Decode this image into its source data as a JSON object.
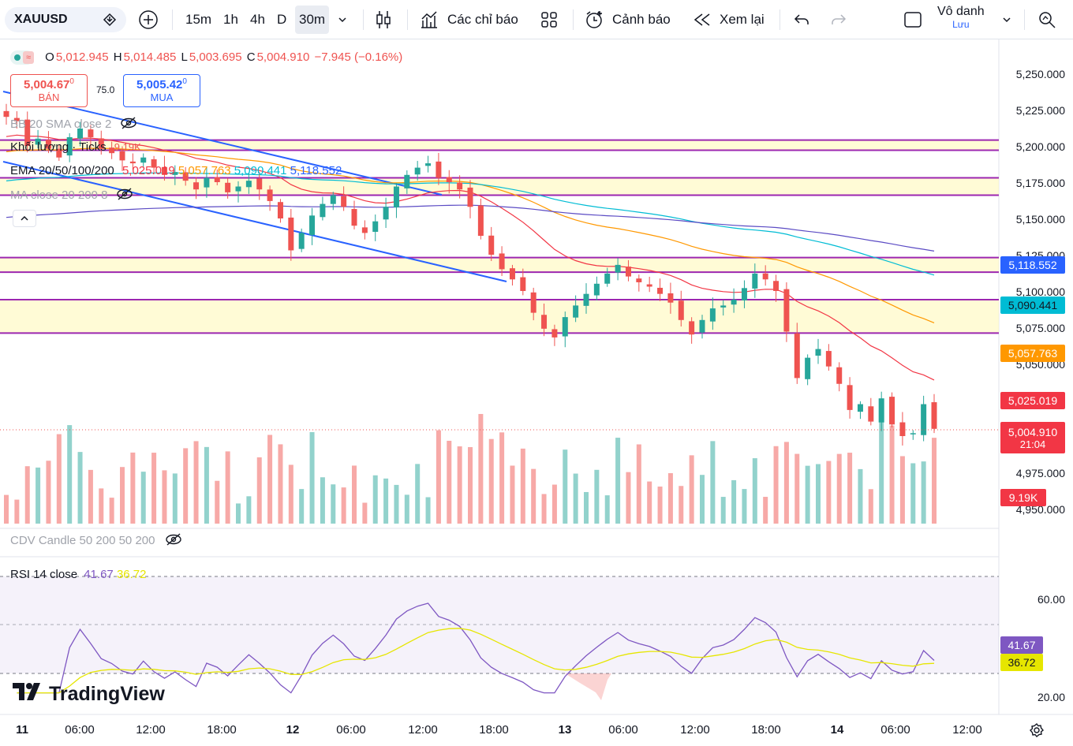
{
  "toolbar": {
    "symbol": "XAUUSD",
    "timeframes": [
      "15m",
      "1h",
      "4h",
      "D",
      "30m"
    ],
    "active_timeframe": "30m",
    "indicators_label": "Các chỉ báo",
    "alerts_label": "Cảnh báo",
    "replay_label": "Xem lại",
    "user_name": "Vô danh",
    "save_label": "Lưu"
  },
  "legend": {
    "ohlc": {
      "o_label": "O",
      "o": "5,012.945",
      "h_label": "H",
      "h": "5,014.485",
      "l_label": "L",
      "l": "5,003.695",
      "c_label": "C",
      "c": "5,004.910",
      "change": "−7.945 (−0.16%)"
    },
    "sell_price": "5,004.67",
    "sell_price_sup": "0",
    "sell_label": "BÁN",
    "spread": "75.0",
    "buy_price": "5,005.42",
    "buy_price_sup": "0",
    "buy_label": "MUA",
    "bb": "BB 20 SMA close 2",
    "volume": "Khối lượng · Ticks",
    "volume_value": "9.19K",
    "ema_label": "EMA 20/50/100/200",
    "ema_values": [
      "5,025.019",
      "5,057.763",
      "5,090.441",
      "5,118.552"
    ],
    "ma": "MA close 20 200 8",
    "cdv": "CDV Candle 50 200 50 200",
    "rsi_label": "RSI 14 close",
    "rsi_values": [
      "41.67",
      "36.72"
    ]
  },
  "price_axis": [
    "5,250.000",
    "5,225.000",
    "5,200.000",
    "5,175.000",
    "5,150.000",
    "5,125.000",
    "5,100.000",
    "5,075.000",
    "5,050.000",
    "4,975.000",
    "4,950.000"
  ],
  "price_tags": {
    "ema200": "5,118.552",
    "ema100": "5,090.441",
    "ema50": "5,057.763",
    "ema20": "5,025.019",
    "last": "5,004.910",
    "countdown": "21:04",
    "volume": "9.19K"
  },
  "rsi_axis": [
    "60.00",
    "20.00"
  ],
  "rsi_tags": [
    "41.67",
    "36.72"
  ],
  "time_axis": [
    "11",
    "06:00",
    "12:00",
    "18:00",
    "12",
    "06:00",
    "12:00",
    "18:00",
    "13",
    "06:00",
    "12:00",
    "18:00",
    "14",
    "06:00",
    "12:00"
  ],
  "brand": "TradingView",
  "colors": {
    "up": "#26a69a",
    "down": "#ef5350",
    "ema20": "#f23645",
    "ema50": "#ff9800",
    "ema100": "#00bcd4",
    "ema200": "#5b4bc4",
    "rsi": "#7e57c2",
    "rsi_ma": "#e6e600",
    "zone_line": "#9c27b0",
    "zone_fill": "#fff9c4",
    "trend": "#2962ff"
  },
  "chart_data": {
    "type": "candlestick",
    "symbol": "XAUUSD",
    "interval": "30m",
    "ylim": [
      4945,
      5260
    ],
    "closes": [
      5220,
      5217,
      5200,
      5205,
      5198,
      5192,
      5206,
      5212,
      5206,
      5198,
      5195,
      5190,
      5188,
      5192,
      5185,
      5180,
      5182,
      5176,
      5170,
      5178,
      5175,
      5168,
      5172,
      5176,
      5170,
      5162,
      5150,
      5128,
      5140,
      5152,
      5160,
      5166,
      5158,
      5145,
      5140,
      5148,
      5158,
      5172,
      5180,
      5185,
      5188,
      5178,
      5175,
      5170,
      5158,
      5138,
      5125,
      5115,
      5108,
      5100,
      5085,
      5074,
      5068,
      5082,
      5090,
      5098,
      5105,
      5112,
      5118,
      5110,
      5106,
      5103,
      5098,
      5092,
      5080,
      5070,
      5080,
      5088,
      5090,
      5094,
      5102,
      5112,
      5108,
      5100,
      5072,
      5040,
      5054,
      5060,
      5048,
      5036,
      5018,
      5022,
      5010,
      5026,
      5008,
      5000,
      5002,
      5022,
      5005
    ],
    "zones": [
      [
        5197,
        5204
      ],
      [
        5166,
        5178
      ],
      [
        5113,
        5123
      ],
      [
        5071,
        5094
      ]
    ],
    "ema": {
      "20": 5025.019,
      "50": 5057.763,
      "100": 5090.441,
      "200": 5118.552
    },
    "rsi": {
      "rsi": 41.67,
      "ma": 36.72,
      "levels": [
        70,
        50,
        30
      ]
    },
    "time_labels": [
      "11",
      "06:00",
      "12:00",
      "18:00",
      "12",
      "06:00",
      "12:00",
      "18:00",
      "13",
      "06:00",
      "12:00",
      "18:00",
      "14",
      "06:00",
      "12:00"
    ]
  }
}
